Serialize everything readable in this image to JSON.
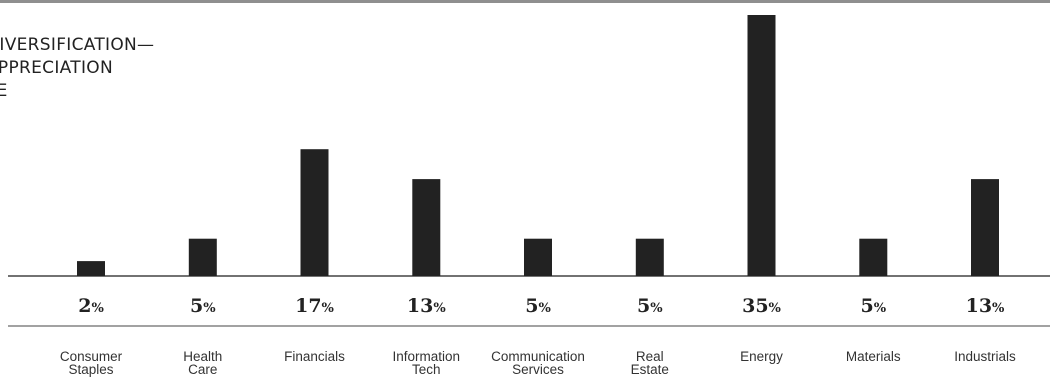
{
  "chart_data": {
    "type": "bar",
    "title_lines": [
      "DIVERSIFICATION—",
      "APPRECIATION",
      "TE"
    ],
    "categories": [
      [
        "Consumer",
        "Staples"
      ],
      [
        "Health",
        "Care"
      ],
      [
        "Financials"
      ],
      [
        "Information",
        "Tech"
      ],
      [
        "Communication",
        "Services"
      ],
      [
        "Real",
        "Estate"
      ],
      [
        "Energy"
      ],
      [
        "Materials"
      ],
      [
        "Industrials"
      ]
    ],
    "values": [
      2,
      5,
      17,
      13,
      5,
      5,
      35,
      5,
      13
    ],
    "value_labels": [
      "2",
      "5",
      "17",
      "13",
      "5",
      "5",
      "35",
      "5",
      "13"
    ],
    "value_unit": "%",
    "colors": {
      "bar": "#222222",
      "axis": "#444444",
      "top_rule": "#8f8f8f"
    },
    "ylim": [
      0,
      35
    ],
    "grid": false,
    "legend": "none"
  }
}
